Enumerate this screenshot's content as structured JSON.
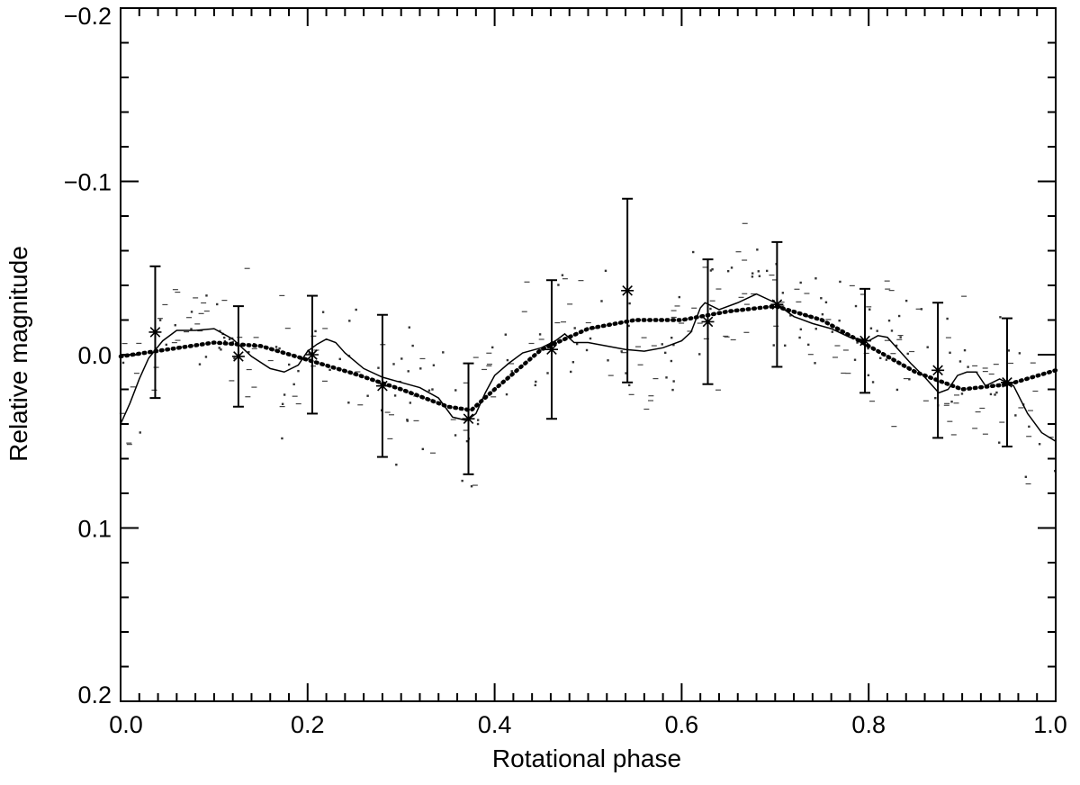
{
  "chart_data": {
    "type": "scatter",
    "xlabel": "Rotational phase",
    "ylabel": "Relative magnitude",
    "xlim": [
      0.0,
      1.0
    ],
    "ylim": [
      -0.2,
      0.2
    ],
    "y_inverted": true,
    "grid": false,
    "x_ticks": [
      "0.0",
      "0.2",
      "0.4",
      "0.6",
      "0.8",
      "1.0"
    ],
    "x_tick_values": [
      0.0,
      0.2,
      0.4,
      0.6,
      0.8,
      1.0
    ],
    "y_ticks": [
      "−0.2",
      "−0.1",
      "0.0",
      "0.1",
      "0.2"
    ],
    "y_tick_values": [
      -0.2,
      -0.1,
      0.0,
      0.1,
      0.2
    ],
    "series": [
      {
        "style": "binned points with error bars (asterisks)",
        "x": [
          0.037,
          0.126,
          0.205,
          0.28,
          0.372,
          0.461,
          0.542,
          0.628,
          0.702,
          0.796,
          0.874,
          0.948
        ],
        "y": [
          -0.013,
          0.001,
          0.0,
          0.018,
          0.037,
          -0.003,
          -0.037,
          -0.019,
          -0.029,
          -0.008,
          0.009,
          0.016
        ],
        "err": [
          0.038,
          0.029,
          0.034,
          0.041,
          0.032,
          0.04,
          0.053,
          0.036,
          0.036,
          0.03,
          0.039,
          0.037
        ]
      },
      {
        "style": "solid line (running mean)",
        "x": [
          0.0,
          0.01,
          0.02,
          0.03,
          0.045,
          0.06,
          0.08,
          0.1,
          0.12,
          0.14,
          0.16,
          0.175,
          0.19,
          0.2,
          0.21,
          0.22,
          0.23,
          0.24,
          0.26,
          0.28,
          0.3,
          0.32,
          0.34,
          0.355,
          0.37,
          0.38,
          0.39,
          0.4,
          0.415,
          0.43,
          0.45,
          0.465,
          0.475,
          0.485,
          0.5,
          0.52,
          0.54,
          0.56,
          0.58,
          0.6,
          0.61,
          0.62,
          0.625,
          0.64,
          0.66,
          0.68,
          0.7,
          0.72,
          0.74,
          0.76,
          0.78,
          0.8,
          0.81,
          0.82,
          0.83,
          0.845,
          0.86,
          0.875,
          0.885,
          0.895,
          0.905,
          0.915,
          0.925,
          0.94,
          0.955,
          0.97,
          0.985,
          1.0
        ],
        "y": [
          0.04,
          0.028,
          0.014,
          0.002,
          -0.008,
          -0.014,
          -0.014,
          -0.015,
          -0.009,
          0.001,
          0.008,
          0.01,
          0.006,
          -0.002,
          -0.006,
          -0.009,
          -0.007,
          -0.001,
          0.008,
          0.013,
          0.016,
          0.019,
          0.025,
          0.036,
          0.038,
          0.034,
          0.022,
          0.012,
          0.005,
          -0.001,
          -0.004,
          -0.008,
          -0.012,
          -0.007,
          -0.007,
          -0.005,
          -0.003,
          -0.002,
          -0.004,
          -0.008,
          -0.013,
          -0.027,
          -0.03,
          -0.026,
          -0.03,
          -0.035,
          -0.03,
          -0.022,
          -0.018,
          -0.015,
          -0.01,
          -0.008,
          -0.011,
          -0.01,
          -0.004,
          0.005,
          0.013,
          0.022,
          0.02,
          0.012,
          0.01,
          0.01,
          0.018,
          0.014,
          0.018,
          0.034,
          0.045,
          0.05
        ]
      },
      {
        "style": "dotted line (model fit)",
        "x": [
          0.0,
          0.05,
          0.1,
          0.15,
          0.2,
          0.25,
          0.3,
          0.35,
          0.375,
          0.4,
          0.45,
          0.5,
          0.55,
          0.6,
          0.65,
          0.7,
          0.75,
          0.8,
          0.85,
          0.9,
          0.95,
          1.0
        ],
        "y": [
          0.001,
          -0.003,
          -0.007,
          -0.005,
          0.003,
          0.011,
          0.02,
          0.03,
          0.032,
          0.02,
          -0.003,
          -0.015,
          -0.02,
          -0.02,
          -0.025,
          -0.028,
          -0.02,
          -0.005,
          0.01,
          0.02,
          0.017,
          0.009
        ]
      },
      {
        "style": "individual measurements (small dots)",
        "count": 360,
        "y_spread": 0.035
      }
    ]
  }
}
